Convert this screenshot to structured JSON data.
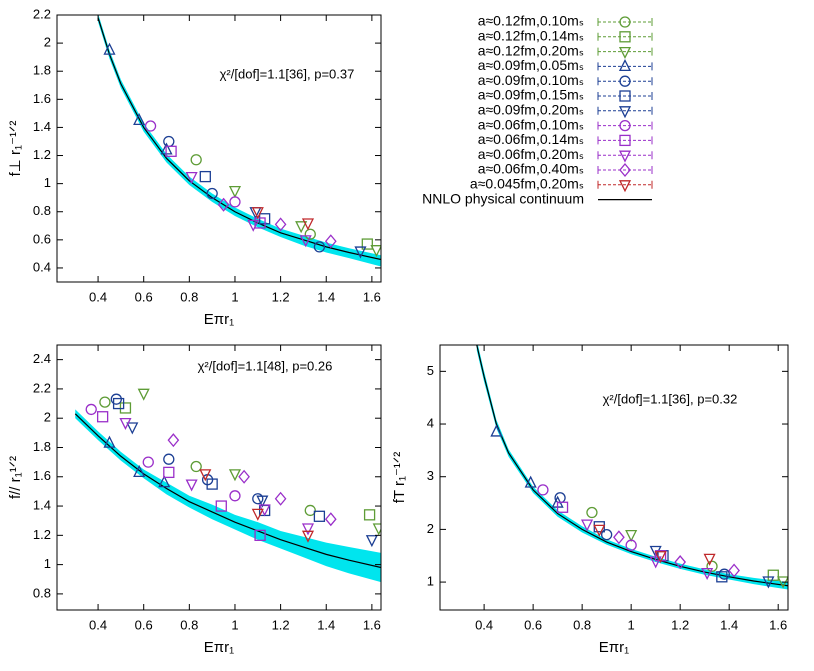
{
  "chart_data": [
    {
      "type": "scatter",
      "xlabel": "Eπr₁",
      "ylabel": "f⊥ r₁⁻¹ᐟ²",
      "annotation": "χ²/[dof]=1.1[36], p=0.37",
      "xlim": [
        0.22,
        1.64
      ],
      "ylim": [
        0.3,
        2.2
      ],
      "xticks": [
        0.4,
        0.6,
        0.8,
        1,
        1.2,
        1.4,
        1.6
      ],
      "yticks": [
        0.4,
        0.6,
        0.8,
        1,
        1.2,
        1.4,
        1.6,
        1.8,
        2,
        2.2
      ],
      "legend": "right",
      "series": [
        {
          "name": "a≈0.12fm,0.10mₛ",
          "color": "#5e9c36",
          "marker": "circle",
          "x": [
            0.83,
            1.33
          ],
          "values": [
            1.17,
            0.64
          ]
        },
        {
          "name": "a≈0.12fm,0.14mₛ",
          "color": "#5e9c36",
          "marker": "square",
          "x": [
            1.58
          ],
          "values": [
            0.57
          ]
        },
        {
          "name": "a≈0.12fm,0.20mₛ",
          "color": "#5e9c36",
          "marker": "triangle-down",
          "x": [
            1.0,
            1.29,
            1.62
          ],
          "values": [
            0.95,
            0.7,
            0.53
          ]
        },
        {
          "name": "a≈0.09fm,0.05mₛ",
          "color": "#1c3f94",
          "marker": "triangle-up",
          "x": [
            0.45,
            0.58,
            0.7
          ],
          "values": [
            1.95,
            1.45,
            1.24
          ]
        },
        {
          "name": "a≈0.09fm,0.10mₛ",
          "color": "#1c3f94",
          "marker": "circle",
          "x": [
            0.71,
            0.9,
            1.37
          ],
          "values": [
            1.3,
            0.93,
            0.55
          ]
        },
        {
          "name": "a≈0.09fm,0.15mₛ",
          "color": "#1c3f94",
          "marker": "square",
          "x": [
            0.87,
            1.13
          ],
          "values": [
            1.05,
            0.75
          ]
        },
        {
          "name": "a≈0.09fm,0.20mₛ",
          "color": "#1c3f94",
          "marker": "triangle-down",
          "x": [
            1.09,
            1.55
          ],
          "values": [
            0.8,
            0.52
          ]
        },
        {
          "name": "a≈0.06fm,0.10mₛ",
          "color": "#9a2fc9",
          "marker": "circle",
          "x": [
            0.63,
            1.0
          ],
          "values": [
            1.41,
            0.87
          ]
        },
        {
          "name": "a≈0.06fm,0.14mₛ",
          "color": "#9a2fc9",
          "marker": "square",
          "x": [
            0.72,
            1.11
          ],
          "values": [
            1.23,
            0.72
          ]
        },
        {
          "name": "a≈0.06fm,0.20mₛ",
          "color": "#9a2fc9",
          "marker": "triangle-down",
          "x": [
            0.81,
            1.08,
            1.31
          ],
          "values": [
            1.05,
            0.71,
            0.6
          ]
        },
        {
          "name": "a≈0.06fm,0.40mₛ",
          "color": "#9a2fc9",
          "marker": "diamond",
          "x": [
            0.95,
            1.2,
            1.42
          ],
          "values": [
            0.85,
            0.71,
            0.59
          ]
        },
        {
          "name": "a≈0.045fm,0.20mₛ",
          "color": "#c0282a",
          "marker": "triangle-down",
          "x": [
            1.1,
            1.32
          ],
          "values": [
            0.8,
            0.72
          ]
        }
      ],
      "fit": {
        "name": "NNLO physical continuum",
        "color": "#000000",
        "band_color": "#00e5ee",
        "x": [
          0.4,
          0.45,
          0.5,
          0.6,
          0.7,
          0.8,
          0.9,
          1.0,
          1.1,
          1.2,
          1.3,
          1.4,
          1.5,
          1.64
        ],
        "values": [
          2.18,
          1.92,
          1.71,
          1.4,
          1.18,
          1.02,
          0.9,
          0.8,
          0.72,
          0.65,
          0.6,
          0.55,
          0.51,
          0.46
        ],
        "band_lower": [
          2.15,
          1.89,
          1.68,
          1.37,
          1.15,
          0.99,
          0.87,
          0.77,
          0.69,
          0.62,
          0.56,
          0.51,
          0.47,
          0.41
        ],
        "band_upper": [
          2.21,
          1.95,
          1.74,
          1.43,
          1.21,
          1.05,
          0.93,
          0.83,
          0.75,
          0.68,
          0.63,
          0.58,
          0.54,
          0.49
        ]
      }
    },
    {
      "type": "scatter",
      "xlabel": "Eπr₁",
      "ylabel": "f// r₁¹ᐟ²",
      "annotation": "χ²/[dof]=1.1[48], p=0.26",
      "xlim": [
        0.22,
        1.64
      ],
      "ylim": [
        0.69,
        2.5
      ],
      "xticks": [
        0.4,
        0.6,
        0.8,
        1,
        1.2,
        1.4,
        1.6
      ],
      "yticks": [
        0.8,
        1,
        1.2,
        1.4,
        1.6,
        1.8,
        2,
        2.2,
        2.4
      ],
      "series": [
        {
          "color": "#5e9c36",
          "marker": "circle",
          "x": [
            0.43,
            0.83,
            1.33
          ],
          "values": [
            2.11,
            1.67,
            1.37
          ]
        },
        {
          "color": "#5e9c36",
          "marker": "square",
          "x": [
            0.52,
            1.59
          ],
          "values": [
            2.07,
            1.34
          ]
        },
        {
          "color": "#5e9c36",
          "marker": "triangle-down",
          "x": [
            0.6,
            1.0,
            1.63
          ],
          "values": [
            2.17,
            1.62,
            1.25
          ]
        },
        {
          "color": "#1c3f94",
          "marker": "triangle-up",
          "x": [
            0.45,
            0.58,
            0.69
          ],
          "values": [
            1.83,
            1.63,
            1.56
          ]
        },
        {
          "color": "#1c3f94",
          "marker": "circle",
          "x": [
            0.48,
            0.71,
            0.88,
            1.1
          ],
          "values": [
            2.13,
            1.72,
            1.58,
            1.45
          ]
        },
        {
          "color": "#1c3f94",
          "marker": "square",
          "x": [
            0.49,
            0.9,
            1.13,
            1.37
          ],
          "values": [
            2.1,
            1.55,
            1.37,
            1.33
          ]
        },
        {
          "color": "#1c3f94",
          "marker": "triangle-down",
          "x": [
            0.55,
            1.12,
            1.6
          ],
          "values": [
            1.94,
            1.44,
            1.17
          ]
        },
        {
          "color": "#9a2fc9",
          "marker": "circle",
          "x": [
            0.37,
            0.62,
            1.0
          ],
          "values": [
            2.06,
            1.7,
            1.47
          ]
        },
        {
          "color": "#9a2fc9",
          "marker": "square",
          "x": [
            0.42,
            0.71,
            0.94,
            1.11
          ],
          "values": [
            2.01,
            1.63,
            1.4,
            1.2
          ]
        },
        {
          "color": "#9a2fc9",
          "marker": "triangle-down",
          "x": [
            0.52,
            0.81,
            1.13,
            1.32
          ],
          "values": [
            1.97,
            1.55,
            1.38,
            1.25
          ]
        },
        {
          "color": "#9a2fc9",
          "marker": "diamond",
          "x": [
            0.73,
            1.04,
            1.2,
            1.42
          ],
          "values": [
            1.85,
            1.6,
            1.45,
            1.31
          ]
        },
        {
          "color": "#c0282a",
          "marker": "triangle-down",
          "x": [
            0.87,
            1.1,
            1.32
          ],
          "values": [
            1.62,
            1.35,
            1.2
          ]
        }
      ],
      "fit": {
        "color": "#000000",
        "band_color": "#00e5ee",
        "x": [
          0.3,
          0.4,
          0.5,
          0.6,
          0.7,
          0.8,
          0.9,
          1.0,
          1.1,
          1.2,
          1.3,
          1.4,
          1.5,
          1.64
        ],
        "values": [
          2.03,
          1.88,
          1.74,
          1.62,
          1.52,
          1.43,
          1.36,
          1.29,
          1.23,
          1.17,
          1.12,
          1.07,
          1.03,
          0.98
        ],
        "band_lower": [
          2.0,
          1.85,
          1.71,
          1.59,
          1.48,
          1.39,
          1.31,
          1.24,
          1.17,
          1.11,
          1.05,
          0.99,
          0.94,
          0.88
        ],
        "band_upper": [
          2.06,
          1.91,
          1.77,
          1.65,
          1.56,
          1.47,
          1.41,
          1.34,
          1.29,
          1.23,
          1.19,
          1.15,
          1.12,
          1.08
        ]
      }
    },
    {
      "type": "scatter",
      "xlabel": "Eπr₁",
      "ylabel": "fT r₁⁻¹ᐟ²",
      "annotation": "χ²/[dof]=1.1[36], p=0.32",
      "xlim": [
        0.22,
        1.64
      ],
      "ylim": [
        0.47,
        5.5
      ],
      "xticks": [
        0.4,
        0.6,
        0.8,
        1,
        1.2,
        1.4,
        1.6
      ],
      "yticks": [
        1,
        2,
        3,
        4,
        5
      ],
      "series": [
        {
          "color": "#5e9c36",
          "marker": "circle",
          "x": [
            0.84,
            1.33
          ],
          "values": [
            2.32,
            1.3
          ]
        },
        {
          "color": "#5e9c36",
          "marker": "square",
          "x": [
            1.58
          ],
          "values": [
            1.13
          ]
        },
        {
          "color": "#5e9c36",
          "marker": "triangle-down",
          "x": [
            1.0,
            1.62
          ],
          "values": [
            1.9,
            1.02
          ]
        },
        {
          "color": "#1c3f94",
          "marker": "triangle-up",
          "x": [
            0.45,
            0.59,
            0.7
          ],
          "values": [
            3.85,
            2.88,
            2.5
          ]
        },
        {
          "color": "#1c3f94",
          "marker": "circle",
          "x": [
            0.71,
            0.9,
            1.38
          ],
          "values": [
            2.6,
            1.9,
            1.15
          ]
        },
        {
          "color": "#1c3f94",
          "marker": "square",
          "x": [
            0.87,
            1.13,
            1.37
          ],
          "values": [
            2.05,
            1.5,
            1.1
          ]
        },
        {
          "color": "#1c3f94",
          "marker": "triangle-down",
          "x": [
            1.1,
            1.56
          ],
          "values": [
            1.6,
            1.02
          ]
        },
        {
          "color": "#9a2fc9",
          "marker": "circle",
          "x": [
            0.64,
            1.0
          ],
          "values": [
            2.75,
            1.7
          ]
        },
        {
          "color": "#9a2fc9",
          "marker": "square",
          "x": [
            0.72,
            1.12
          ],
          "values": [
            2.42,
            1.5
          ]
        },
        {
          "color": "#9a2fc9",
          "marker": "triangle-down",
          "x": [
            0.82,
            1.1,
            1.31
          ],
          "values": [
            2.1,
            1.4,
            1.18
          ]
        },
        {
          "color": "#9a2fc9",
          "marker": "diamond",
          "x": [
            0.95,
            1.2,
            1.42
          ],
          "values": [
            1.85,
            1.38,
            1.22
          ]
        },
        {
          "color": "#c0282a",
          "marker": "triangle-down",
          "x": [
            0.87,
            1.12,
            1.32
          ],
          "values": [
            2.0,
            1.5,
            1.45
          ]
        }
      ],
      "fit": {
        "color": "#000000",
        "band_color": "#00e5ee",
        "x": [
          0.37,
          0.4,
          0.45,
          0.5,
          0.6,
          0.7,
          0.8,
          0.9,
          1.0,
          1.1,
          1.2,
          1.3,
          1.4,
          1.5,
          1.64
        ],
        "values": [
          5.5,
          4.9,
          4.0,
          3.45,
          2.75,
          2.3,
          2.0,
          1.76,
          1.58,
          1.43,
          1.3,
          1.19,
          1.1,
          1.02,
          0.93
        ],
        "band_lower": [
          5.4,
          4.8,
          3.92,
          3.38,
          2.69,
          2.24,
          1.94,
          1.71,
          1.53,
          1.38,
          1.25,
          1.14,
          1.05,
          0.96,
          0.86
        ],
        "band_upper": [
          5.6,
          5.0,
          4.08,
          3.52,
          2.81,
          2.36,
          2.06,
          1.81,
          1.63,
          1.48,
          1.35,
          1.24,
          1.15,
          1.08,
          1.0
        ]
      }
    }
  ]
}
